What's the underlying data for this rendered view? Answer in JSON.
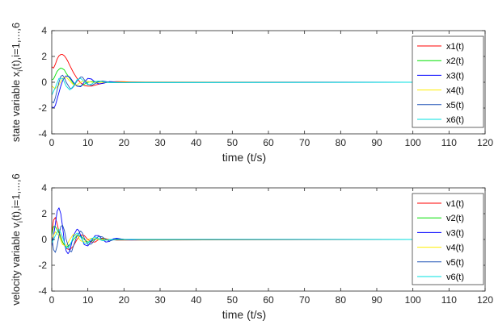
{
  "chart_data": [
    {
      "type": "line",
      "xlabel": "time (t/s)",
      "ylabel_parts": [
        "state variable x",
        "i",
        "(t),i=1,...,6"
      ],
      "xlim": [
        0,
        120
      ],
      "ylim": [
        -4,
        4
      ],
      "xticks": [
        0,
        10,
        20,
        30,
        40,
        50,
        60,
        70,
        80,
        90,
        100,
        110,
        120
      ],
      "yticks": [
        -4,
        -2,
        0,
        2,
        4
      ],
      "grid": false,
      "legend_position": "top-right",
      "x_end": 100,
      "series": [
        {
          "name": "x1(t)",
          "color": "#ff0000",
          "points": [
            [
              0,
              1.2
            ],
            [
              0.5,
              1.1
            ],
            [
              1,
              1.4
            ],
            [
              1.5,
              1.8
            ],
            [
              2,
              2.05
            ],
            [
              2.5,
              2.15
            ],
            [
              3,
              2.15
            ],
            [
              3.5,
              2.05
            ],
            [
              4,
              1.85
            ],
            [
              4.5,
              1.6
            ],
            [
              5,
              1.3
            ],
            [
              6,
              0.75
            ],
            [
              7,
              0.3
            ],
            [
              8,
              -0.05
            ],
            [
              9,
              -0.25
            ],
            [
              10,
              -0.3
            ],
            [
              11,
              -0.3
            ],
            [
              12,
              -0.22
            ],
            [
              14,
              -0.08
            ],
            [
              16,
              0.02
            ],
            [
              18,
              0.05
            ],
            [
              20,
              0.04
            ],
            [
              22,
              0.02
            ],
            [
              26,
              0.0
            ],
            [
              100,
              0.0
            ]
          ]
        },
        {
          "name": "x2(t)",
          "color": "#00e000",
          "points": [
            [
              0,
              0.2
            ],
            [
              0.5,
              0.25
            ],
            [
              1,
              0.55
            ],
            [
              1.5,
              0.85
            ],
            [
              2,
              1.0
            ],
            [
              2.5,
              1.1
            ],
            [
              3,
              1.05
            ],
            [
              3.5,
              0.95
            ],
            [
              4,
              0.7
            ],
            [
              5,
              0.3
            ],
            [
              6,
              -0.1
            ],
            [
              7,
              -0.3
            ],
            [
              8,
              -0.3
            ],
            [
              9,
              -0.15
            ],
            [
              10,
              0.0
            ],
            [
              11,
              0.05
            ],
            [
              12,
              0.05
            ],
            [
              14,
              0.0
            ],
            [
              16,
              -0.02
            ],
            [
              20,
              0.0
            ],
            [
              100,
              0.0
            ]
          ]
        },
        {
          "name": "x3(t)",
          "color": "#0000ff",
          "points": [
            [
              0,
              -1.9
            ],
            [
              0.5,
              -2.0
            ],
            [
              1,
              -1.8
            ],
            [
              1.5,
              -1.3
            ],
            [
              2,
              -0.8
            ],
            [
              2.5,
              -0.3
            ],
            [
              3,
              0.1
            ],
            [
              3.5,
              0.35
            ],
            [
              4,
              0.5
            ],
            [
              5,
              0.4
            ],
            [
              6,
              0.0
            ],
            [
              7,
              -0.3
            ],
            [
              8,
              -0.35
            ],
            [
              9,
              0.0
            ],
            [
              10,
              0.3
            ],
            [
              11,
              0.25
            ],
            [
              12,
              0.0
            ],
            [
              13,
              -0.12
            ],
            [
              14,
              -0.1
            ],
            [
              16,
              0.05
            ],
            [
              18,
              0.03
            ],
            [
              20,
              0.0
            ],
            [
              22,
              0.02
            ],
            [
              100,
              0.0
            ]
          ]
        },
        {
          "name": "x4(t)",
          "color": "#ffee00",
          "points": [
            [
              0,
              -0.3
            ],
            [
              1,
              -0.5
            ],
            [
              2,
              -0.2
            ],
            [
              3,
              0.3
            ],
            [
              4,
              0.4
            ],
            [
              5,
              0.1
            ],
            [
              6,
              -0.2
            ],
            [
              7,
              -0.2
            ],
            [
              8,
              0.0
            ],
            [
              9,
              0.1
            ],
            [
              10,
              0.05
            ],
            [
              12,
              -0.03
            ],
            [
              14,
              0.0
            ],
            [
              100,
              0.0
            ]
          ]
        },
        {
          "name": "x5(t)",
          "color": "#1f52b5",
          "points": [
            [
              0,
              -1.5
            ],
            [
              0.5,
              -1.6
            ],
            [
              1,
              -1.2
            ],
            [
              1.5,
              -0.6
            ],
            [
              2,
              0.0
            ],
            [
              2.5,
              0.45
            ],
            [
              3,
              0.55
            ],
            [
              3.5,
              0.35
            ],
            [
              4,
              0.0
            ],
            [
              5,
              -0.45
            ],
            [
              5.5,
              -0.5
            ],
            [
              6,
              -0.35
            ],
            [
              7,
              0.1
            ],
            [
              8,
              0.4
            ],
            [
              8.5,
              0.4
            ],
            [
              9,
              0.2
            ],
            [
              10,
              -0.15
            ],
            [
              11,
              -0.25
            ],
            [
              12,
              -0.1
            ],
            [
              13,
              0.05
            ],
            [
              14,
              0.1
            ],
            [
              16,
              0.0
            ],
            [
              18,
              -0.03
            ],
            [
              100,
              0.0
            ]
          ]
        },
        {
          "name": "x6(t)",
          "color": "#00e0e0",
          "points": [
            [
              0,
              -1.0
            ],
            [
              1,
              -0.4
            ],
            [
              2,
              0.3
            ],
            [
              3,
              0.3
            ],
            [
              4,
              -0.3
            ],
            [
              5,
              -0.6
            ],
            [
              6,
              -0.3
            ],
            [
              7,
              0.2
            ],
            [
              8,
              0.3
            ],
            [
              9,
              0.05
            ],
            [
              10,
              -0.2
            ],
            [
              11,
              -0.15
            ],
            [
              12,
              0.05
            ],
            [
              13,
              0.1
            ],
            [
              15,
              0.0
            ],
            [
              17,
              -0.03
            ],
            [
              100,
              0.0
            ]
          ]
        }
      ]
    },
    {
      "type": "line",
      "xlabel": "time (t/s)",
      "ylabel_parts": [
        "velocity variable v",
        "i",
        "(t),i=1,...,6"
      ],
      "xlim": [
        0,
        120
      ],
      "ylim": [
        -4,
        4
      ],
      "xticks": [
        0,
        10,
        20,
        30,
        40,
        50,
        60,
        70,
        80,
        90,
        100,
        110,
        120
      ],
      "yticks": [
        -4,
        -2,
        0,
        2,
        4
      ],
      "grid": false,
      "legend_position": "top-right",
      "x_end": 100,
      "series": [
        {
          "name": "v1(t)",
          "color": "#ff0000",
          "points": [
            [
              0,
              0.5
            ],
            [
              0.5,
              1.5
            ],
            [
              1,
              1.7
            ],
            [
              1.5,
              1.2
            ],
            [
              2,
              0.6
            ],
            [
              3,
              -0.2
            ],
            [
              4,
              -0.7
            ],
            [
              5,
              -0.8
            ],
            [
              6,
              -0.5
            ],
            [
              7,
              0.0
            ],
            [
              8,
              0.35
            ],
            [
              9,
              0.3
            ],
            [
              10,
              0.0
            ],
            [
              11,
              -0.2
            ],
            [
              12,
              -0.2
            ],
            [
              13,
              0.0
            ],
            [
              14,
              0.1
            ],
            [
              16,
              0.0
            ],
            [
              18,
              -0.05
            ],
            [
              100,
              0.0
            ]
          ]
        },
        {
          "name": "v2(t)",
          "color": "#00e000",
          "points": [
            [
              0,
              0.3
            ],
            [
              0.5,
              1.0
            ],
            [
              1,
              1.0
            ],
            [
              2,
              0.5
            ],
            [
              3,
              -0.2
            ],
            [
              4,
              -0.6
            ],
            [
              5,
              -0.4
            ],
            [
              6,
              0.0
            ],
            [
              7,
              0.3
            ],
            [
              8,
              0.3
            ],
            [
              9,
              0.0
            ],
            [
              10,
              -0.2
            ],
            [
              11,
              -0.15
            ],
            [
              12,
              0.05
            ],
            [
              14,
              0.05
            ],
            [
              16,
              -0.02
            ],
            [
              100,
              0.0
            ]
          ]
        },
        {
          "name": "v3(t)",
          "color": "#0000ff",
          "points": [
            [
              0,
              -0.5
            ],
            [
              0.5,
              0.3
            ],
            [
              1,
              1.2
            ],
            [
              1.5,
              2.2
            ],
            [
              2,
              2.45
            ],
            [
              2.5,
              2.0
            ],
            [
              3,
              1.0
            ],
            [
              3.5,
              -0.2
            ],
            [
              4,
              -0.9
            ],
            [
              4.5,
              -1.1
            ],
            [
              5,
              -0.9
            ],
            [
              5.5,
              -0.3
            ],
            [
              6,
              0.3
            ],
            [
              7,
              0.8
            ],
            [
              7.5,
              0.7
            ],
            [
              8,
              0.3
            ],
            [
              9,
              -0.4
            ],
            [
              10,
              -0.5
            ],
            [
              11,
              -0.1
            ],
            [
              12,
              0.3
            ],
            [
              13,
              0.3
            ],
            [
              14,
              0.0
            ],
            [
              15,
              -0.2
            ],
            [
              16,
              -0.15
            ],
            [
              17,
              0.05
            ],
            [
              18,
              0.1
            ],
            [
              20,
              0.0
            ],
            [
              22,
              -0.03
            ],
            [
              25,
              0.0
            ],
            [
              100,
              0.0
            ]
          ]
        },
        {
          "name": "v4(t)",
          "color": "#ffee00",
          "points": [
            [
              0,
              0.0
            ],
            [
              1,
              0.6
            ],
            [
              2,
              0.3
            ],
            [
              3,
              -0.4
            ],
            [
              4,
              -0.5
            ],
            [
              5,
              0.0
            ],
            [
              6,
              0.4
            ],
            [
              7,
              0.3
            ],
            [
              8,
              -0.1
            ],
            [
              9,
              -0.2
            ],
            [
              10,
              0.0
            ],
            [
              11,
              0.1
            ],
            [
              13,
              0.0
            ],
            [
              100,
              0.0
            ]
          ]
        },
        {
          "name": "v5(t)",
          "color": "#1f52b5",
          "points": [
            [
              0,
              0.2
            ],
            [
              0.5,
              -0.8
            ],
            [
              1,
              -1.0
            ],
            [
              1.5,
              -0.5
            ],
            [
              2,
              0.3
            ],
            [
              2.5,
              1.0
            ],
            [
              3,
              1.1
            ],
            [
              3.5,
              0.7
            ],
            [
              4,
              0.0
            ],
            [
              5,
              -0.9
            ],
            [
              5.5,
              -0.95
            ],
            [
              6,
              -0.5
            ],
            [
              7,
              0.3
            ],
            [
              8,
              0.65
            ],
            [
              8.5,
              0.5
            ],
            [
              9,
              0.1
            ],
            [
              10,
              -0.4
            ],
            [
              11,
              -0.35
            ],
            [
              12,
              0.0
            ],
            [
              13,
              0.25
            ],
            [
              14,
              0.2
            ],
            [
              15,
              0.0
            ],
            [
              16,
              -0.12
            ],
            [
              18,
              0.05
            ],
            [
              20,
              0.02
            ],
            [
              100,
              0.0
            ]
          ]
        },
        {
          "name": "v6(t)",
          "color": "#00e0e0",
          "points": [
            [
              0,
              -0.3
            ],
            [
              1,
              0.3
            ],
            [
              2,
              0.8
            ],
            [
              3,
              0.2
            ],
            [
              4,
              -0.7
            ],
            [
              5,
              -0.5
            ],
            [
              6,
              0.2
            ],
            [
              7,
              0.5
            ],
            [
              8,
              0.2
            ],
            [
              9,
              -0.3
            ],
            [
              10,
              -0.3
            ],
            [
              11,
              0.05
            ],
            [
              12,
              0.2
            ],
            [
              13,
              0.05
            ],
            [
              14,
              -0.1
            ],
            [
              16,
              0.0
            ],
            [
              100,
              0.0
            ]
          ]
        }
      ]
    }
  ]
}
